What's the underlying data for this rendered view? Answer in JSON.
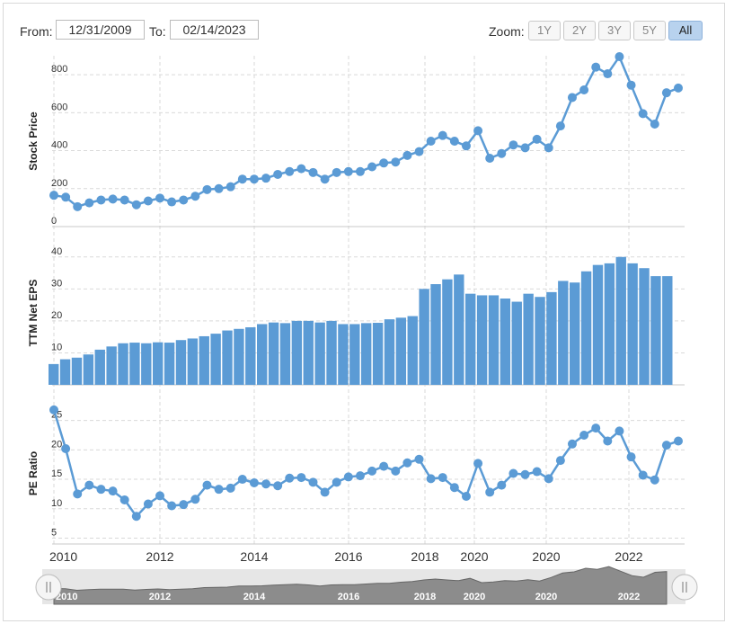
{
  "toolbar": {
    "from_label": "From:",
    "from_value": "12/31/2009",
    "to_label": "To:",
    "to_value": "02/14/2023",
    "zoom_label": "Zoom:",
    "zoom_options": [
      "1Y",
      "2Y",
      "3Y",
      "5Y",
      "All"
    ],
    "zoom_selected": "All"
  },
  "colors": {
    "series": "#5b9bd5",
    "grid": "#d9d9d9",
    "navigator_fill": "#8c8c8c",
    "navigator_bg": "#e6e6e6"
  },
  "chart_data": {
    "type": "line",
    "x_tick_labels": [
      "2010",
      "2012",
      "2014",
      "2016",
      "2018",
      "2020",
      "2020",
      "2022"
    ],
    "panels": [
      {
        "type": "line",
        "ylabel": "Stock Price",
        "ylim": [
          0,
          900
        ],
        "yticks": [
          0,
          200,
          400,
          600,
          800
        ],
        "values": [
          165,
          155,
          105,
          125,
          140,
          145,
          140,
          115,
          135,
          150,
          130,
          140,
          160,
          195,
          200,
          210,
          250,
          250,
          255,
          275,
          290,
          305,
          285,
          250,
          285,
          290,
          290,
          315,
          335,
          340,
          375,
          395,
          450,
          480,
          450,
          425,
          505,
          360,
          385,
          430,
          415,
          460,
          415,
          530,
          680,
          720,
          840,
          805,
          895,
          745,
          595,
          540,
          705,
          730
        ]
      },
      {
        "type": "bar",
        "ylabel": "TTM Net EPS",
        "ylim": [
          0,
          45
        ],
        "yticks": [
          0,
          10,
          20,
          30,
          40
        ],
        "values": [
          6.5,
          8,
          8.5,
          9.5,
          11,
          12,
          13,
          13.2,
          13,
          13.3,
          13.2,
          14,
          14.5,
          15.2,
          16,
          17,
          17.5,
          18,
          19,
          19.5,
          19.3,
          20,
          20,
          19.5,
          20,
          19,
          19,
          19.3,
          19.4,
          20.5,
          21,
          21.5,
          30,
          31.5,
          33,
          34.5,
          28.5,
          28,
          28,
          27,
          26,
          28.5,
          27.5,
          29,
          32.5,
          32,
          35.5,
          37.5,
          38,
          40,
          38,
          36.5,
          34,
          34
        ]
      },
      {
        "type": "line",
        "ylabel": "PE Ratio",
        "ylim": [
          4,
          28
        ],
        "yticks": [
          5,
          10,
          15,
          20,
          25
        ],
        "values": [
          26.8,
          20.2,
          12.5,
          14,
          13.3,
          13,
          11.5,
          8.7,
          10.8,
          12.2,
          10.5,
          10.7,
          11.6,
          14,
          13.3,
          13.5,
          15,
          14.4,
          14.2,
          13.9,
          15.2,
          15.3,
          14.5,
          12.8,
          14.5,
          15.4,
          15.6,
          16.4,
          17.2,
          16.4,
          17.8,
          18.4,
          15.1,
          15.3,
          13.6,
          12.1,
          17.7,
          12.8,
          14,
          16,
          15.8,
          16.3,
          15.1,
          18.2,
          21,
          22.5,
          23.7,
          21.5,
          23.2,
          18.8,
          15.7,
          14.9,
          20.8,
          21.5
        ]
      }
    ],
    "navigator": {
      "tick_labels": [
        "2010",
        "2012",
        "2014",
        "2016",
        "2018",
        "2020",
        "2020",
        "2022"
      ]
    }
  }
}
